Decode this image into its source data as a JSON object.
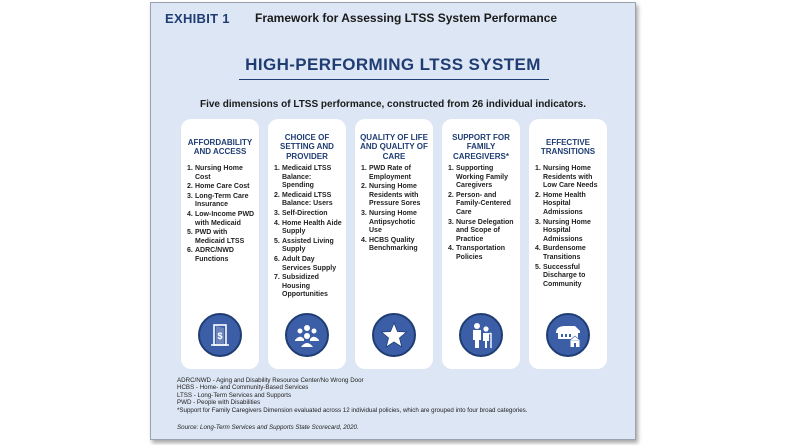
{
  "header": {
    "exhibit": "EXHIBIT 1",
    "title": "Framework for Assessing LTSS System Performance"
  },
  "main_title": "HIGH-PERFORMING LTSS SYSTEM",
  "subtitle": "Five dimensions of LTSS performance, constructed from 26 individual indicators.",
  "dimensions": [
    {
      "title": "AFFORDABILITY AND ACCESS",
      "icon": "door-dollar-icon",
      "items": [
        {
          "n": "1.",
          "t": "Nursing Home Cost"
        },
        {
          "n": "2.",
          "t": "Home Care Cost"
        },
        {
          "n": "3.",
          "t": "Long-Term Care Insurance"
        },
        {
          "n": "4.",
          "t": "Low-Income PWD with Medicaid"
        },
        {
          "n": "5.",
          "t": "PWD with Medicaid LTSS"
        },
        {
          "n": "6.",
          "t": "ADRC/NWD Functions"
        }
      ]
    },
    {
      "title": "CHOICE OF SETTING AND PROVIDER",
      "icon": "people-group-icon",
      "items": [
        {
          "n": "1.",
          "t": "Medicaid LTSS Balance: Spending"
        },
        {
          "n": "2.",
          "t": "Medicaid LTSS Balance: Users"
        },
        {
          "n": "3.",
          "t": "Self-Direction"
        },
        {
          "n": "4.",
          "t": "Home Health Aide Supply"
        },
        {
          "n": "5.",
          "t": "Assisted Living Supply"
        },
        {
          "n": "6.",
          "t": "Adult Day Services Supply"
        },
        {
          "n": "7.",
          "t": "Subsidized Housing Opportunities"
        }
      ]
    },
    {
      "title": "QUALITY OF LIFE AND QUALITY OF CARE",
      "icon": "star-icon",
      "items": [
        {
          "n": "1.",
          "t": "PWD Rate of Employment"
        },
        {
          "n": "2.",
          "t": "Nursing Home Residents with Pressure Sores"
        },
        {
          "n": "3.",
          "t": "Nursing Home Antipsychotic Use"
        },
        {
          "n": "4.",
          "t": "HCBS Quality Benchmarking"
        }
      ]
    },
    {
      "title": "SUPPORT FOR FAMILY CAREGIVERS*",
      "icon": "caregiver-icon",
      "items": [
        {
          "n": "1.",
          "t": "Supporting Working Family Caregivers"
        },
        {
          "n": "2.",
          "t": "Person- and Family-Centered Care"
        },
        {
          "n": "3.",
          "t": "Nurse Delegation and Scope of Practice"
        },
        {
          "n": "4.",
          "t": "Transportation Policies"
        }
      ]
    },
    {
      "title": "EFFECTIVE TRANSITIONS",
      "icon": "hospital-home-icon",
      "items": [
        {
          "n": "1.",
          "t": "Nursing Home Residents with Low Care Needs"
        },
        {
          "n": "2.",
          "t": "Home Health Hospital Admissions"
        },
        {
          "n": "3.",
          "t": "Nursing Home Hospital Admissions"
        },
        {
          "n": "4.",
          "t": "Burdensome Transitions"
        },
        {
          "n": "5.",
          "t": "Successful Discharge to Community"
        }
      ]
    }
  ],
  "footnotes": [
    "ADRC/NWD - Aging and Disability Resource Center/No Wrong Door",
    "HCBS - Home- and Community-Based Services",
    "LTSS - Long-Term Services and Supports",
    "PWD - People with Disabilities",
    "*Support for Family Caregivers Dimension evaluated across 12 individual policies, which are grouped into four broad categories."
  ],
  "source": "Source: Long-Term Services and Supports State Scorecard, 2020.",
  "colors": {
    "panel": "#dde6f4",
    "navy": "#1f3d73",
    "icon_fill": "#3b5ea7"
  }
}
